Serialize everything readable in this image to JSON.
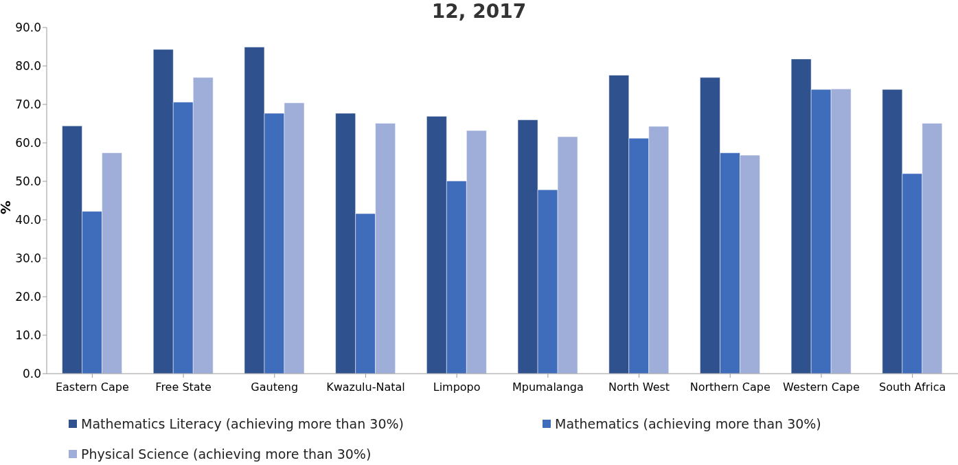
{
  "chart_data": {
    "type": "bar",
    "title": "12, 2017",
    "ylabel": "%",
    "categories": [
      "Eastern Cape",
      "Free State",
      "Gauteng",
      "Kwazulu-Natal",
      "Limpopo",
      "Mpumalanga",
      "North West",
      "Northern Cape",
      "Western Cape",
      "South Africa"
    ],
    "series": [
      {
        "name": "Mathematics Literacy (achieving more than 30%)",
        "color": "#2f528f",
        "values": [
          64.4,
          84.3,
          84.9,
          67.7,
          66.9,
          66.0,
          77.6,
          77.0,
          81.8,
          73.9
        ]
      },
      {
        "name": "Mathematics (achieving more than 30%)",
        "color": "#406cbc",
        "values": [
          42.2,
          70.6,
          67.7,
          41.6,
          50.1,
          47.8,
          61.2,
          57.4,
          73.9,
          52.0
        ]
      },
      {
        "name": "Physical Science (achieving more than 30%)",
        "color": "#9faed8",
        "values": [
          57.4,
          77.0,
          70.4,
          65.1,
          63.2,
          61.6,
          64.3,
          56.8,
          74.0,
          65.1
        ]
      }
    ],
    "ylim": [
      0,
      90
    ],
    "yticks": [
      {
        "value": 0,
        "label": "0.0"
      },
      {
        "value": 10,
        "label": "10.0"
      },
      {
        "value": 20,
        "label": "20.0"
      },
      {
        "value": 30,
        "label": "30.0"
      },
      {
        "value": 40,
        "label": "40.0"
      },
      {
        "value": 50,
        "label": "50.0"
      },
      {
        "value": 60,
        "label": "60.0"
      },
      {
        "value": 70,
        "label": "70.0"
      },
      {
        "value": 80,
        "label": "80.0"
      },
      {
        "value": 90,
        "label": "90.0"
      }
    ],
    "legend": "bottom"
  }
}
